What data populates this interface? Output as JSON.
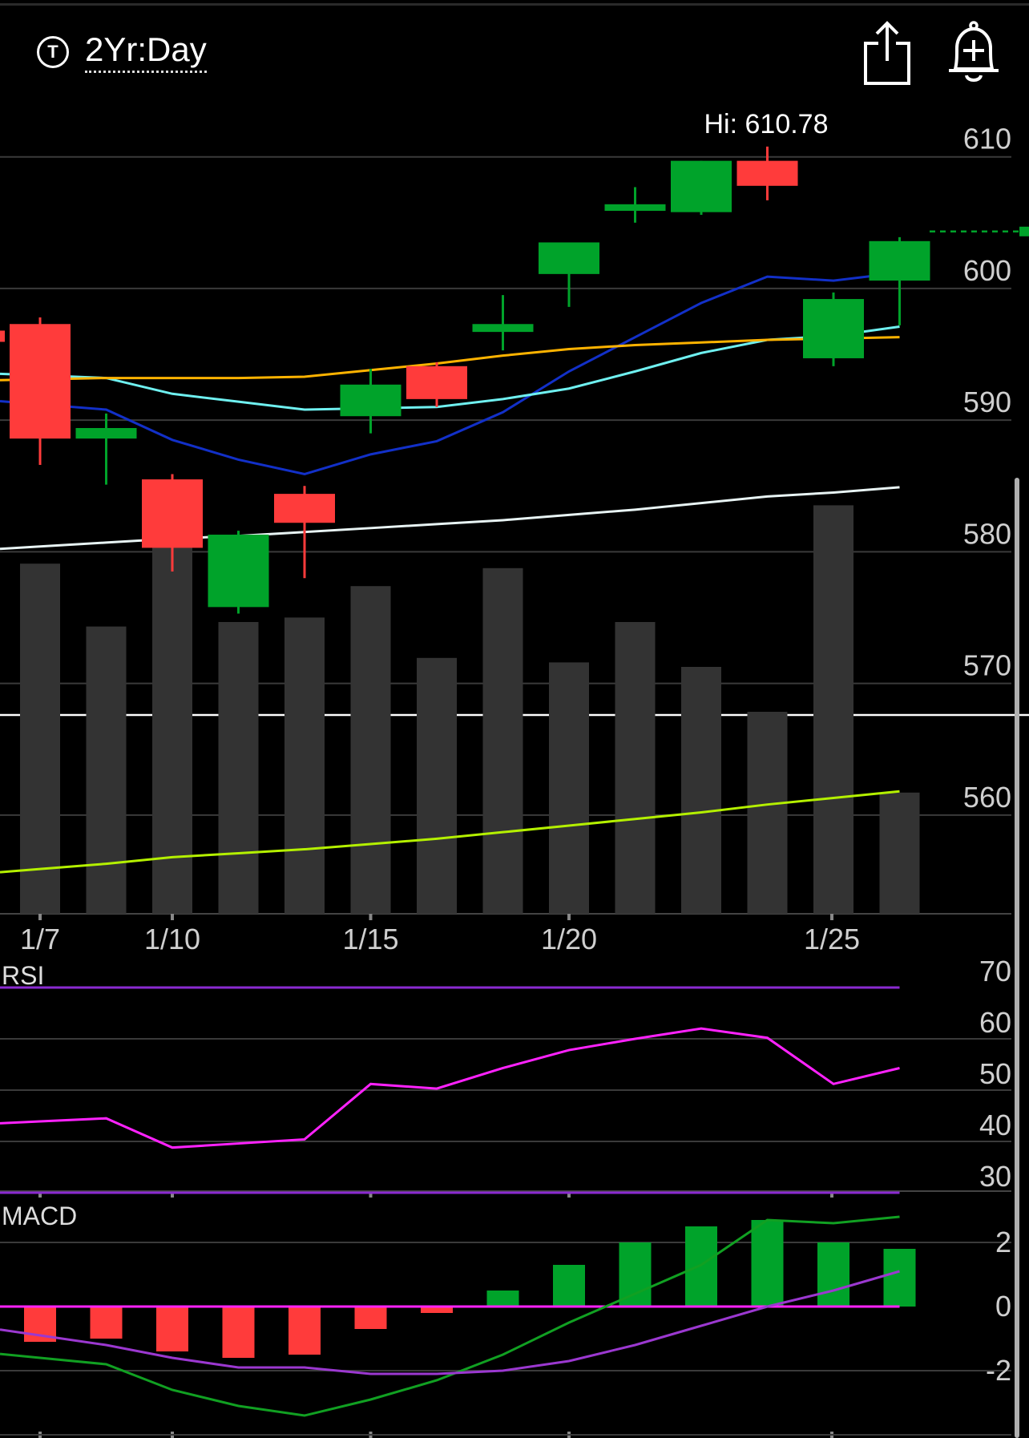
{
  "header": {
    "timeframe_label": "2Yr:Day",
    "timeframe_icon": "ticker-circle-icon",
    "timeframe_glyph": "T",
    "share_icon": "share-icon",
    "alert_icon": "add-alert-bell-icon"
  },
  "colors": {
    "up": "#00a32a",
    "down": "#ff3b3b",
    "volume": "#333333",
    "ma_blue": "#1230c8",
    "ma_cyan": "#6ff0f0",
    "ma_orange": "#ffb300",
    "ma_white": "#e8f4f4",
    "ma_lime": "#b4f000",
    "rsi_line": "#ff22ff",
    "rsi_bands": "#8a2ad0",
    "macd_line": "#11a022",
    "signal_line": "#9b38d0",
    "macd_zero": "#ff22ff"
  },
  "chart_data": [
    {
      "type": "candlestick",
      "title": "",
      "high_label": "Hi: 610.78",
      "y_ticks": [
        610,
        600,
        590,
        580,
        570,
        560
      ],
      "ylim": [
        552.5,
        614
      ],
      "x_ticks": [
        {
          "label": "1/7",
          "index": 0
        },
        {
          "label": "1/10",
          "index": 2
        },
        {
          "label": "1/15",
          "index": 5
        },
        {
          "label": "1/20",
          "index": 8
        },
        {
          "label": "1/25",
          "index": 12
        }
      ],
      "candles": [
        {
          "open": 597.3,
          "close": 588.6,
          "high": 597.8,
          "low": 586.6
        },
        {
          "open": 588.6,
          "close": 589.4,
          "high": 590.5,
          "low": 585.1
        },
        {
          "open": 585.5,
          "close": 580.3,
          "high": 585.9,
          "low": 578.5
        },
        {
          "open": 575.8,
          "close": 581.3,
          "high": 581.6,
          "low": 575.3
        },
        {
          "open": 584.4,
          "close": 582.2,
          "high": 585.0,
          "low": 578.0
        },
        {
          "open": 590.3,
          "close": 592.7,
          "high": 593.9,
          "low": 589.0
        },
        {
          "open": 594.1,
          "close": 591.6,
          "high": 594.4,
          "low": 591.0
        },
        {
          "open": 596.7,
          "close": 597.3,
          "high": 599.5,
          "low": 595.3
        },
        {
          "open": 601.1,
          "close": 603.5,
          "high": 603.5,
          "low": 598.6
        },
        {
          "open": 605.9,
          "close": 606.4,
          "high": 607.7,
          "low": 605.0
        },
        {
          "open": 605.8,
          "close": 609.7,
          "high": 609.7,
          "low": 605.6
        },
        {
          "open": 609.7,
          "close": 607.8,
          "high": 610.78,
          "low": 606.7
        },
        {
          "open": 594.7,
          "close": 599.2,
          "high": 599.7,
          "low": 594.1
        },
        {
          "open": 600.6,
          "close": 603.6,
          "high": 603.9,
          "low": 597.2
        }
      ],
      "volume_rel": [
        0.78,
        0.64,
        0.88,
        0.65,
        0.66,
        0.73,
        0.57,
        0.77,
        0.56,
        0.65,
        0.55,
        0.45,
        0.91,
        0.27
      ],
      "moving_averages": [
        {
          "color_key": "ma_blue",
          "values": [
            591.2,
            590.8,
            588.5,
            587.0,
            585.9,
            587.4,
            588.4,
            590.6,
            593.7,
            596.3,
            598.9,
            600.9,
            600.6,
            601.2
          ]
        },
        {
          "color_key": "ma_cyan",
          "values": [
            593.4,
            593.2,
            592.0,
            591.4,
            590.8,
            590.9,
            591.0,
            591.6,
            592.4,
            593.7,
            595.1,
            596.1,
            596.4,
            597.1
          ]
        },
        {
          "color_key": "ma_orange",
          "values": [
            593.1,
            593.2,
            593.2,
            593.2,
            593.3,
            593.8,
            594.3,
            594.9,
            595.4,
            595.7,
            595.9,
            596.1,
            596.2,
            596.3
          ]
        },
        {
          "color_key": "ma_white",
          "values": [
            580.4,
            580.7,
            581.0,
            581.2,
            581.5,
            581.8,
            582.1,
            582.4,
            582.8,
            583.2,
            583.7,
            584.2,
            584.5,
            584.9
          ]
        },
        {
          "color_key": "ma_lime",
          "values": [
            555.9,
            556.3,
            556.8,
            557.1,
            557.4,
            557.8,
            558.2,
            558.7,
            559.2,
            559.7,
            560.2,
            560.8,
            561.3,
            561.8
          ]
        }
      ],
      "last_price": 603.6
    },
    {
      "type": "line",
      "title": "RSI",
      "y_ticks": [
        70,
        60,
        50,
        40,
        30
      ],
      "ylim": [
        25,
        75
      ],
      "bands": [
        70,
        30
      ],
      "values": [
        43.9,
        44.5,
        38.8,
        39.6,
        40.4,
        51.2,
        50.3,
        54.3,
        57.8,
        60.0,
        62.0,
        60.2,
        51.2,
        54.3
      ]
    },
    {
      "type": "bar",
      "title": "MACD",
      "y_ticks": [
        2,
        0,
        -2
      ],
      "ylim": [
        -4.1,
        3.0
      ],
      "histogram": [
        -1.1,
        -1.0,
        -1.4,
        -1.6,
        -1.5,
        -0.7,
        -0.2,
        0.5,
        1.3,
        2.0,
        2.5,
        2.7,
        2.0,
        1.8
      ],
      "macd_line": [
        -1.6,
        -1.8,
        -2.6,
        -3.1,
        -3.4,
        -2.9,
        -2.3,
        -1.5,
        -0.5,
        0.4,
        1.3,
        2.7,
        2.6,
        2.8
      ],
      "signal_line": [
        -0.9,
        -1.2,
        -1.6,
        -1.9,
        -1.9,
        -2.1,
        -2.1,
        -2.0,
        -1.7,
        -1.2,
        -0.6,
        0.0,
        0.5,
        1.1
      ]
    }
  ]
}
